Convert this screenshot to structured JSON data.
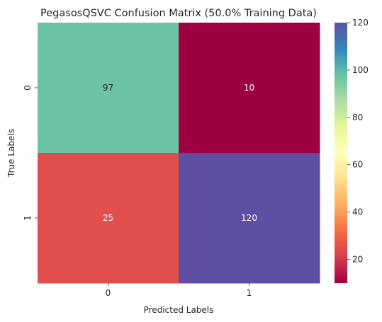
{
  "chart_data": {
    "type": "heatmap",
    "title": "PegasosQSVC Confusion Matrix (50.0% Training Data)",
    "xlabel": "Predicted Labels",
    "ylabel": "True Labels",
    "x_categories": [
      "0",
      "1"
    ],
    "y_categories": [
      "0",
      "1"
    ],
    "values": [
      [
        97,
        10
      ],
      [
        25,
        120
      ]
    ],
    "colormap": "Spectral",
    "colorbar": {
      "min": 10,
      "max": 120,
      "ticks": [
        20,
        40,
        60,
        80,
        100,
        120
      ]
    }
  }
}
